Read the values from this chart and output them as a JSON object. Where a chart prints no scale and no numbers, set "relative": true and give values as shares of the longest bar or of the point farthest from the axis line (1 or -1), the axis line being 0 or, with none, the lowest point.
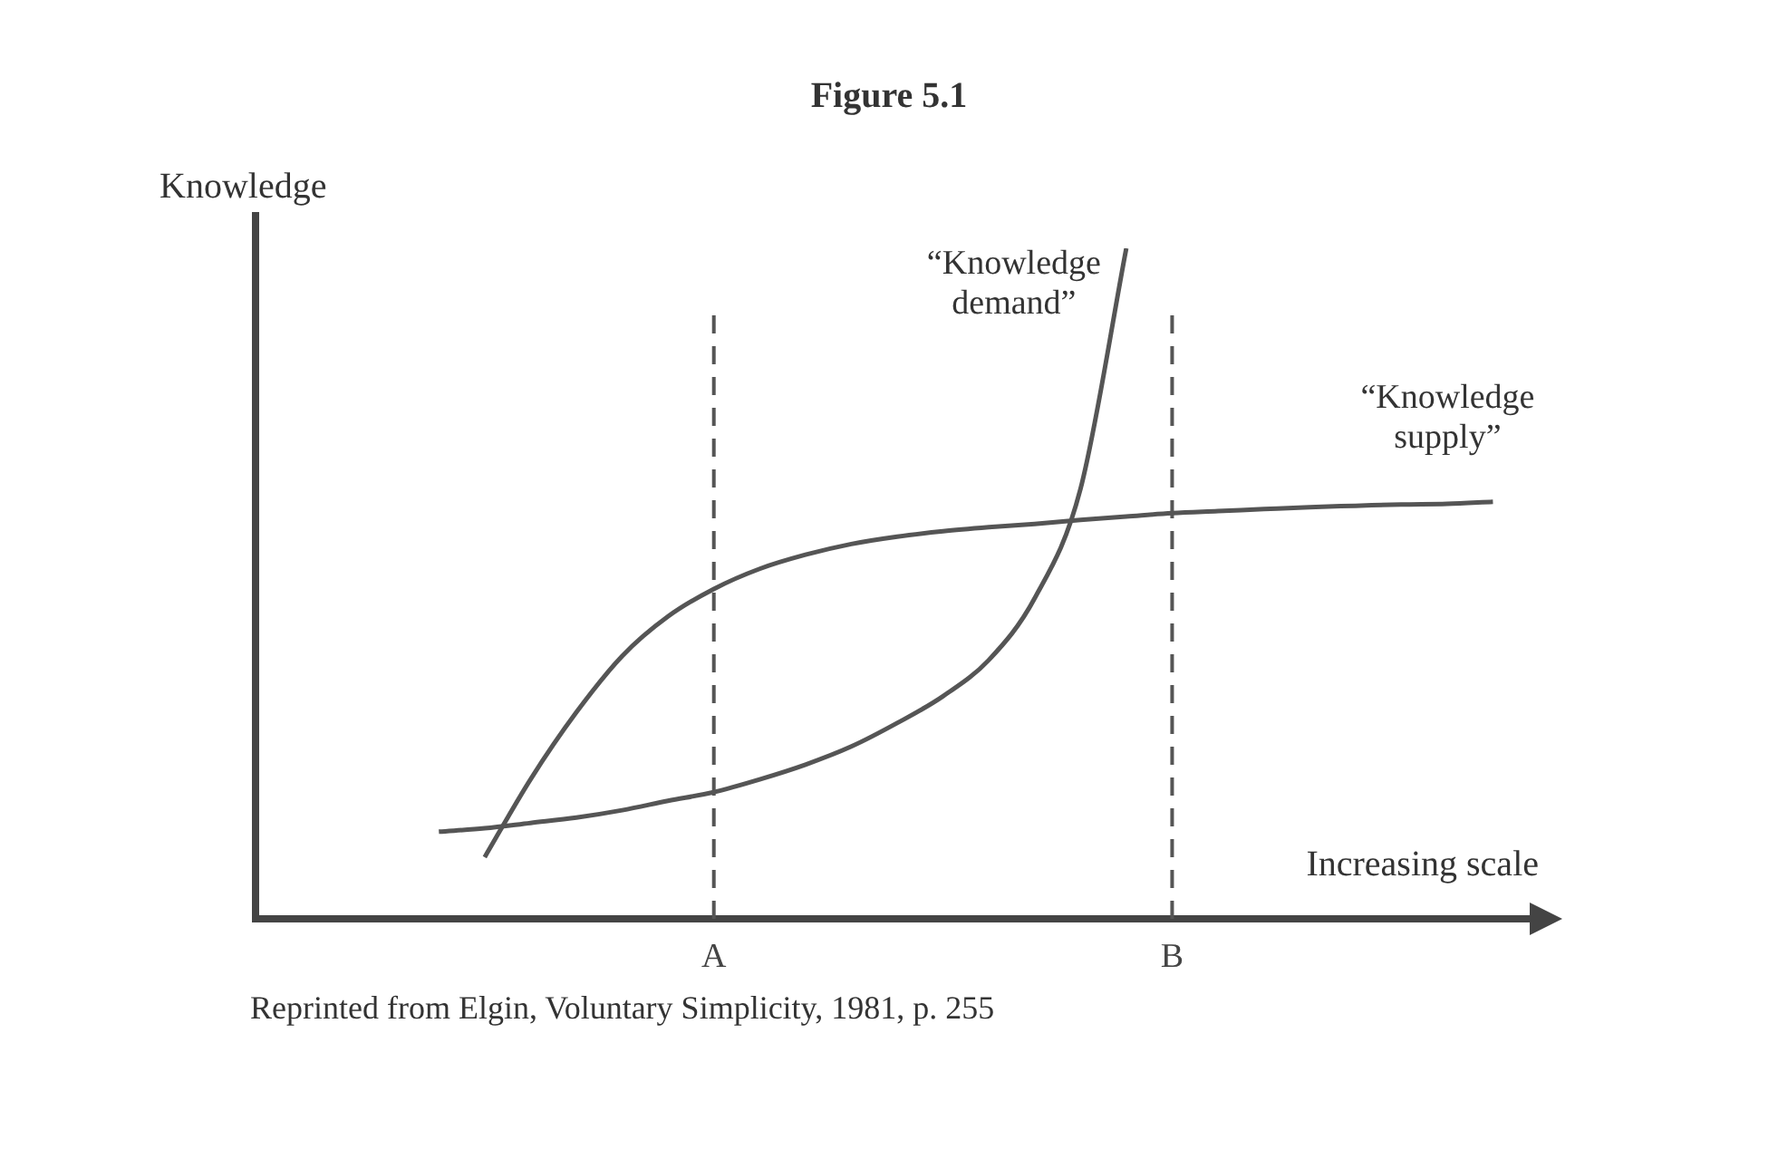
{
  "chart_data": {
    "type": "line",
    "title": "Figure 5.1",
    "ylabel": "Knowledge",
    "xlabel": "Increasing scale",
    "relative": true,
    "legend": false,
    "marker": "none",
    "line_style": "solid",
    "categories": [
      null,
      null,
      null,
      null,
      null,
      null,
      null,
      null,
      null,
      null,
      "A",
      null,
      null,
      null,
      null,
      null,
      null,
      null,
      null,
      null,
      "B",
      null,
      null,
      null,
      null,
      null,
      null,
      null,
      null
    ],
    "series": [
      {
        "name": "“Knowledge demand”",
        "color": "#555555",
        "values": [
          null,
          null,
          null,
          null,
          0.13,
          0.135,
          0.143,
          0.151,
          0.162,
          0.176,
          0.189,
          0.208,
          0.23,
          0.257,
          0.292,
          0.332,
          0.386,
          0.478,
          0.641,
          1.0,
          null,
          null,
          null,
          null,
          null,
          null,
          null,
          null,
          null
        ]
      },
      {
        "name": "“Knowledge supply”",
        "color": "#555555",
        "values": [
          null,
          null,
          null,
          null,
          null,
          0.092,
          0.208,
          0.308,
          0.392,
          0.451,
          0.492,
          0.522,
          0.543,
          0.559,
          0.57,
          0.578,
          0.584,
          0.589,
          0.595,
          0.6,
          0.605,
          0.608,
          0.611,
          0.614,
          0.616,
          0.618,
          0.619,
          0.622,
          null
        ]
      }
    ],
    "ref_lines": [
      {
        "axis": "x",
        "value": "A",
        "line_style": "dashed",
        "color": "#555555"
      },
      {
        "axis": "x",
        "value": "B",
        "line_style": "dashed",
        "color": "#555555"
      }
    ],
    "annotations": [
      "Reprinted from Elgin, Voluntary Simplicity, 1981, p. 255"
    ]
  }
}
